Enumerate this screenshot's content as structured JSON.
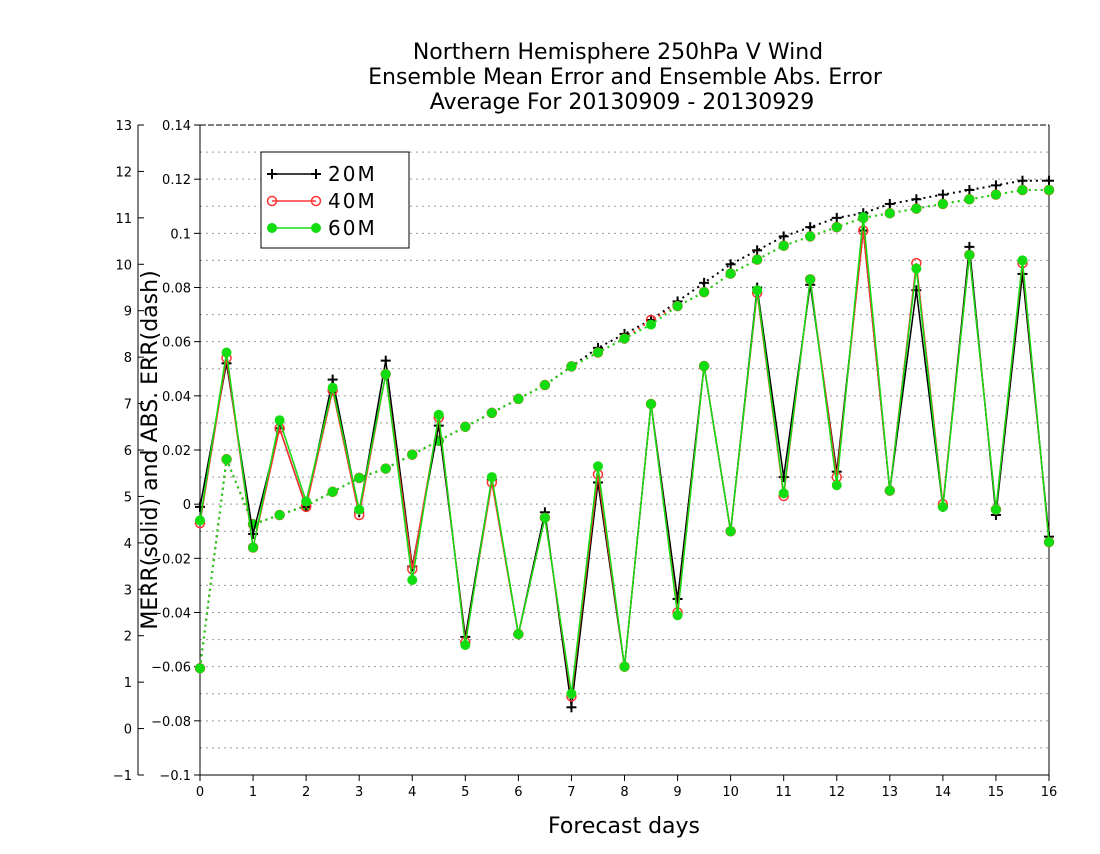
{
  "chart_data": {
    "type": "line",
    "title": [
      "Northern Hemisphere 250hPa V Wind",
      "Ensemble Mean Error and Ensemble Abs. Error",
      "Average For 20130909 - 20130929"
    ],
    "xlabel": "Forecast days",
    "ylabel": "MERR(solid) and ABS. ERR(dash)",
    "xlim": [
      0,
      16
    ],
    "x_ticks": [
      "0",
      "1",
      "2",
      "3",
      "4",
      "5",
      "6",
      "7",
      "8",
      "9",
      "10",
      "11",
      "12",
      "13",
      "14",
      "15",
      "16"
    ],
    "y_left_lim": [
      -1,
      13
    ],
    "y_left_ticks": [
      "−1",
      "0",
      "1",
      "2",
      "3",
      "4",
      "5",
      "6",
      "7",
      "8",
      "9",
      "10",
      "11",
      "12",
      "13"
    ],
    "y_right_lim": [
      -0.1,
      0.14
    ],
    "y_right_ticks": [
      "−0.1",
      "−0.08",
      "−0.06",
      "−0.04",
      "−0.02",
      "0",
      "0.02",
      "0.04",
      "0.06",
      "0.08",
      "0.1",
      "0.12",
      "0.14"
    ],
    "grid": true,
    "legend_position": "top-left",
    "x": [
      0,
      0.5,
      1,
      1.5,
      2,
      2.5,
      3,
      3.5,
      4,
      4.5,
      5,
      5.5,
      6,
      6.5,
      7,
      7.5,
      8,
      8.5,
      9,
      9.5,
      10,
      10.5,
      11,
      11.5,
      12,
      12.5,
      13,
      13.5,
      14,
      14.5,
      15,
      15.5,
      16
    ],
    "series": [
      {
        "name": "20M",
        "color": "#000000",
        "marker": "plus",
        "merr": [
          -0.001,
          0.052,
          -0.011,
          0.028,
          -0.001,
          0.046,
          -0.003,
          0.053,
          -0.023,
          0.029,
          -0.049,
          0.009,
          -0.048,
          -0.003,
          -0.075,
          0.008,
          -0.06,
          0.037,
          -0.035,
          0.051,
          -0.01,
          0.08,
          0.01,
          0.081,
          0.012,
          0.101,
          0.005,
          0.079,
          -0.001,
          0.095,
          -0.004,
          0.085,
          -0.012
        ],
        "abs_err": [
          1.3,
          5.8,
          4.4,
          4.6,
          4.8,
          5.1,
          5.4,
          5.6,
          5.9,
          6.2,
          6.5,
          6.8,
          7.1,
          7.4,
          7.8,
          8.2,
          8.5,
          8.8,
          9.2,
          9.6,
          10.0,
          10.3,
          10.6,
          10.8,
          11.0,
          11.1,
          11.3,
          11.4,
          11.5,
          11.6,
          11.7,
          11.8,
          11.8
        ]
      },
      {
        "name": "40M",
        "color": "#ff3333",
        "marker": "circle",
        "merr": [
          -0.007,
          0.054,
          -0.016,
          0.028,
          -0.001,
          0.042,
          -0.004,
          0.048,
          -0.024,
          0.032,
          -0.051,
          0.008,
          -0.048,
          -0.005,
          -0.071,
          0.011,
          -0.06,
          0.037,
          -0.04,
          0.051,
          -0.01,
          0.078,
          0.003,
          0.083,
          0.01,
          0.101,
          0.005,
          0.089,
          0.0,
          0.092,
          -0.002,
          0.089,
          -0.014
        ],
        "abs_err": [
          1.3,
          5.8,
          4.4,
          4.6,
          4.8,
          5.1,
          5.4,
          5.6,
          5.9,
          6.2,
          6.5,
          6.8,
          7.1,
          7.4,
          7.8,
          8.1,
          8.4,
          8.8,
          9.1,
          9.4,
          9.8,
          10.1,
          10.4,
          10.6,
          10.8,
          11.0,
          11.1,
          11.2,
          11.3,
          11.4,
          11.5,
          11.6,
          11.6
        ]
      },
      {
        "name": "60M",
        "color": "#11dd11",
        "marker": "dot",
        "merr": [
          -0.006,
          0.056,
          -0.016,
          0.031,
          0.001,
          0.043,
          -0.002,
          0.048,
          -0.028,
          0.033,
          -0.052,
          0.01,
          -0.048,
          -0.005,
          -0.07,
          0.014,
          -0.06,
          0.037,
          -0.041,
          0.051,
          -0.01,
          0.079,
          0.004,
          0.083,
          0.007,
          0.106,
          0.005,
          0.087,
          -0.001,
          0.092,
          -0.002,
          0.09,
          -0.014
        ],
        "abs_err": [
          1.3,
          5.8,
          4.4,
          4.6,
          4.8,
          5.1,
          5.4,
          5.6,
          5.9,
          6.2,
          6.5,
          6.8,
          7.1,
          7.4,
          7.8,
          8.1,
          8.4,
          8.7,
          9.1,
          9.4,
          9.8,
          10.1,
          10.4,
          10.6,
          10.8,
          11.0,
          11.1,
          11.2,
          11.3,
          11.4,
          11.5,
          11.6,
          11.6
        ]
      }
    ]
  }
}
